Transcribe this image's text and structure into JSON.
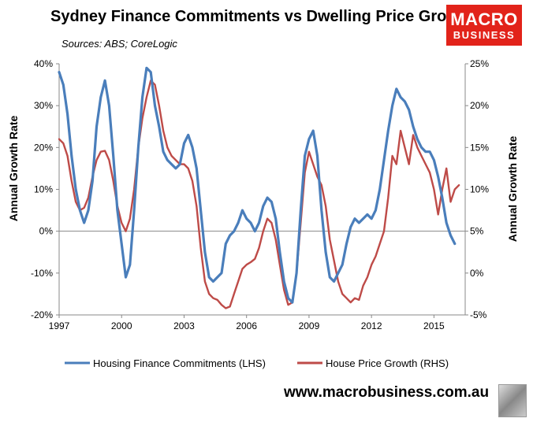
{
  "header": {
    "title": "Sydney Finance Commitments vs Dwelling Price Growth",
    "subtitle": "Sources: ABS; CoreLogic",
    "logo_line1": "MACRO",
    "logo_line2": "BUSINESS",
    "website": "www.macrobusiness.com.au"
  },
  "colors": {
    "lhs_series": "#4a7ebb",
    "rhs_series": "#be4b48",
    "logo_bg": "#e2231a"
  },
  "chart_data": {
    "type": "line",
    "ylabel_left": "Annual Growth Rate",
    "ylabel_right": "Annual Growth Rate",
    "ylim_left": [
      -20,
      40
    ],
    "ylim_right": [
      -5,
      25
    ],
    "yticks_left": [
      -20,
      -10,
      0,
      10,
      20,
      30,
      40
    ],
    "yticks_left_labels": [
      "-20%",
      "-10%",
      "0%",
      "10%",
      "20%",
      "30%",
      "40%"
    ],
    "yticks_right": [
      -5,
      0,
      5,
      10,
      15,
      20,
      25
    ],
    "yticks_right_labels": [
      "-5%",
      "0%",
      "5%",
      "10%",
      "15%",
      "20%",
      "25%"
    ],
    "xlim": [
      1997,
      2016.5
    ],
    "xticks": [
      1997,
      2000,
      2003,
      2006,
      2009,
      2012,
      2015
    ],
    "xtick_labels": [
      "1997",
      "2000",
      "2003",
      "2006",
      "2009",
      "2012",
      "2015"
    ],
    "legend_position": "bottom",
    "series": [
      {
        "name": "Housing Finance Commitments (LHS)",
        "axis": "left",
        "points": [
          [
            1997.0,
            38
          ],
          [
            1997.2,
            35
          ],
          [
            1997.4,
            28
          ],
          [
            1997.6,
            18
          ],
          [
            1997.8,
            10
          ],
          [
            1998.0,
            5
          ],
          [
            1998.2,
            2
          ],
          [
            1998.4,
            5
          ],
          [
            1998.6,
            12
          ],
          [
            1998.8,
            25
          ],
          [
            1999.0,
            32
          ],
          [
            1999.2,
            36
          ],
          [
            1999.4,
            30
          ],
          [
            1999.6,
            18
          ],
          [
            1999.8,
            5
          ],
          [
            2000.0,
            -3
          ],
          [
            2000.2,
            -11
          ],
          [
            2000.4,
            -8
          ],
          [
            2000.6,
            5
          ],
          [
            2000.8,
            20
          ],
          [
            2001.0,
            32
          ],
          [
            2001.2,
            39
          ],
          [
            2001.4,
            38
          ],
          [
            2001.6,
            30
          ],
          [
            2001.8,
            25
          ],
          [
            2002.0,
            19
          ],
          [
            2002.2,
            17
          ],
          [
            2002.4,
            16
          ],
          [
            2002.6,
            15
          ],
          [
            2002.8,
            16
          ],
          [
            2003.0,
            21
          ],
          [
            2003.2,
            23
          ],
          [
            2003.4,
            20
          ],
          [
            2003.6,
            15
          ],
          [
            2003.8,
            5
          ],
          [
            2004.0,
            -5
          ],
          [
            2004.2,
            -11
          ],
          [
            2004.4,
            -12
          ],
          [
            2004.6,
            -11
          ],
          [
            2004.8,
            -10
          ],
          [
            2005.0,
            -3
          ],
          [
            2005.2,
            -1
          ],
          [
            2005.4,
            0
          ],
          [
            2005.6,
            2
          ],
          [
            2005.8,
            5
          ],
          [
            2006.0,
            3
          ],
          [
            2006.2,
            2
          ],
          [
            2006.4,
            0
          ],
          [
            2006.6,
            2
          ],
          [
            2006.8,
            6
          ],
          [
            2007.0,
            8
          ],
          [
            2007.2,
            7
          ],
          [
            2007.4,
            3
          ],
          [
            2007.6,
            -5
          ],
          [
            2007.8,
            -12
          ],
          [
            2008.0,
            -16
          ],
          [
            2008.2,
            -17
          ],
          [
            2008.4,
            -10
          ],
          [
            2008.6,
            5
          ],
          [
            2008.8,
            18
          ],
          [
            2009.0,
            22
          ],
          [
            2009.2,
            24
          ],
          [
            2009.4,
            18
          ],
          [
            2009.6,
            5
          ],
          [
            2009.8,
            -5
          ],
          [
            2010.0,
            -11
          ],
          [
            2010.2,
            -12
          ],
          [
            2010.4,
            -10
          ],
          [
            2010.6,
            -8
          ],
          [
            2010.8,
            -3
          ],
          [
            2011.0,
            1
          ],
          [
            2011.2,
            3
          ],
          [
            2011.4,
            2
          ],
          [
            2011.6,
            3
          ],
          [
            2011.8,
            4
          ],
          [
            2012.0,
            3
          ],
          [
            2012.2,
            5
          ],
          [
            2012.4,
            10
          ],
          [
            2012.6,
            17
          ],
          [
            2012.8,
            24
          ],
          [
            2013.0,
            30
          ],
          [
            2013.2,
            34
          ],
          [
            2013.4,
            32
          ],
          [
            2013.6,
            31
          ],
          [
            2013.8,
            29
          ],
          [
            2014.0,
            25
          ],
          [
            2014.2,
            22
          ],
          [
            2014.4,
            20
          ],
          [
            2014.6,
            19
          ],
          [
            2014.8,
            19
          ],
          [
            2015.0,
            17
          ],
          [
            2015.2,
            13
          ],
          [
            2015.4,
            8
          ],
          [
            2015.6,
            2
          ],
          [
            2015.8,
            -1
          ],
          [
            2016.0,
            -3
          ]
        ]
      },
      {
        "name": "House Price Growth (RHS)",
        "axis": "right",
        "points": [
          [
            1997.0,
            16
          ],
          [
            1997.2,
            15.5
          ],
          [
            1997.4,
            14
          ],
          [
            1997.6,
            11
          ],
          [
            1997.8,
            8.5
          ],
          [
            1998.0,
            7.5
          ],
          [
            1998.2,
            7.8
          ],
          [
            1998.4,
            9
          ],
          [
            1998.6,
            11.5
          ],
          [
            1998.8,
            13.5
          ],
          [
            1999.0,
            14.5
          ],
          [
            1999.2,
            14.6
          ],
          [
            1999.4,
            13.5
          ],
          [
            1999.6,
            11
          ],
          [
            1999.8,
            8
          ],
          [
            2000.0,
            6
          ],
          [
            2000.2,
            5
          ],
          [
            2000.4,
            6.5
          ],
          [
            2000.6,
            10
          ],
          [
            2000.8,
            15
          ],
          [
            2001.0,
            18.5
          ],
          [
            2001.2,
            21
          ],
          [
            2001.4,
            23
          ],
          [
            2001.6,
            22.5
          ],
          [
            2001.8,
            20
          ],
          [
            2002.0,
            17
          ],
          [
            2002.2,
            15
          ],
          [
            2002.4,
            14
          ],
          [
            2002.6,
            13.5
          ],
          [
            2002.8,
            13
          ],
          [
            2003.0,
            13
          ],
          [
            2003.2,
            12.5
          ],
          [
            2003.4,
            11
          ],
          [
            2003.6,
            8
          ],
          [
            2003.8,
            3
          ],
          [
            2004.0,
            -1
          ],
          [
            2004.2,
            -2.5
          ],
          [
            2004.4,
            -3
          ],
          [
            2004.6,
            -3.2
          ],
          [
            2004.8,
            -3.8
          ],
          [
            2005.0,
            -4.2
          ],
          [
            2005.2,
            -4
          ],
          [
            2005.4,
            -2.5
          ],
          [
            2005.6,
            -1
          ],
          [
            2005.8,
            0.5
          ],
          [
            2006.0,
            1
          ],
          [
            2006.2,
            1.3
          ],
          [
            2006.4,
            1.7
          ],
          [
            2006.6,
            3
          ],
          [
            2006.8,
            5
          ],
          [
            2007.0,
            6.5
          ],
          [
            2007.2,
            6
          ],
          [
            2007.4,
            4
          ],
          [
            2007.6,
            1
          ],
          [
            2007.8,
            -2
          ],
          [
            2008.0,
            -3.8
          ],
          [
            2008.2,
            -3.5
          ],
          [
            2008.4,
            0
          ],
          [
            2008.6,
            6
          ],
          [
            2008.8,
            12
          ],
          [
            2009.0,
            14.5
          ],
          [
            2009.2,
            13
          ],
          [
            2009.4,
            11.5
          ],
          [
            2009.6,
            10.5
          ],
          [
            2009.8,
            8
          ],
          [
            2010.0,
            4
          ],
          [
            2010.2,
            1.5
          ],
          [
            2010.4,
            -1
          ],
          [
            2010.6,
            -2.5
          ],
          [
            2010.8,
            -3
          ],
          [
            2011.0,
            -3.5
          ],
          [
            2011.2,
            -3
          ],
          [
            2011.4,
            -3.2
          ],
          [
            2011.6,
            -1.5
          ],
          [
            2011.8,
            -0.5
          ],
          [
            2012.0,
            1
          ],
          [
            2012.2,
            2
          ],
          [
            2012.4,
            3.5
          ],
          [
            2012.6,
            5
          ],
          [
            2012.8,
            9
          ],
          [
            2013.0,
            14
          ],
          [
            2013.2,
            13
          ],
          [
            2013.4,
            17
          ],
          [
            2013.6,
            15
          ],
          [
            2013.8,
            13
          ],
          [
            2014.0,
            16.5
          ],
          [
            2014.2,
            15
          ],
          [
            2014.4,
            14
          ],
          [
            2014.6,
            13
          ],
          [
            2014.8,
            12
          ],
          [
            2015.0,
            10
          ],
          [
            2015.2,
            7
          ],
          [
            2015.4,
            10
          ],
          [
            2015.6,
            12.5
          ],
          [
            2015.8,
            8.5
          ],
          [
            2016.0,
            10
          ],
          [
            2016.2,
            10.5
          ]
        ]
      }
    ]
  }
}
